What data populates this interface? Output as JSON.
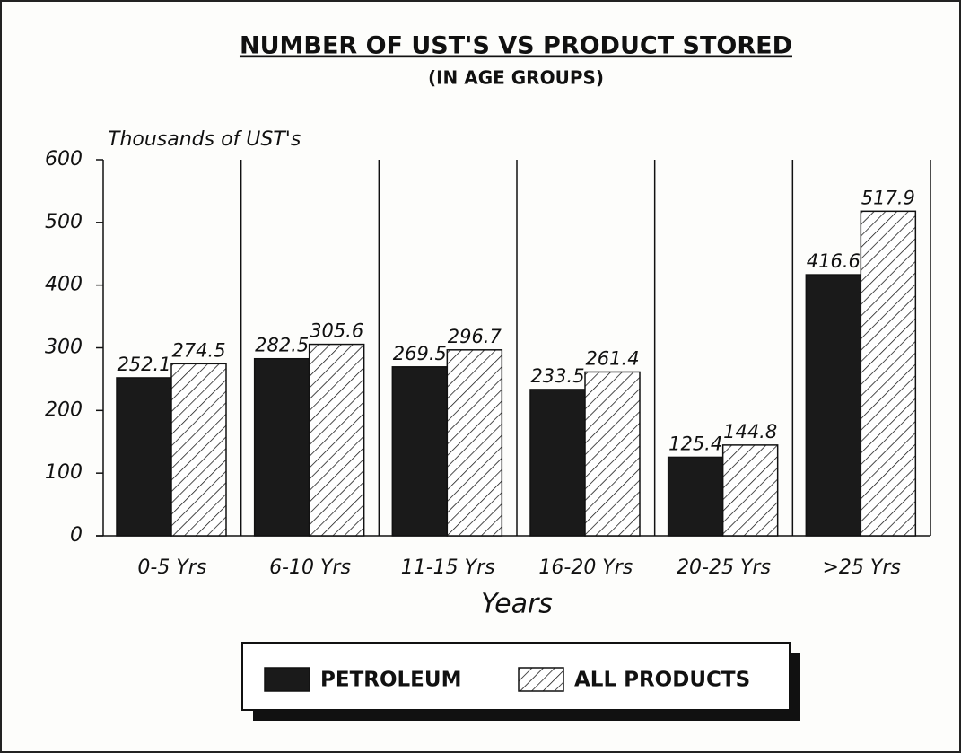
{
  "chart_data": {
    "type": "bar",
    "title": "NUMBER OF UST'S VS PRODUCT STORED",
    "subtitle": "(IN AGE GROUPS)",
    "y_axis_label": "Thousands of UST's",
    "x_axis_label": "Years",
    "categories": [
      "0-5 Yrs",
      "6-10 Yrs",
      "11-15 Yrs",
      "16-20 Yrs",
      "20-25 Yrs",
      ">25 Yrs"
    ],
    "series": [
      {
        "name": "PETROLEUM",
        "color": "#1a1a1a",
        "pattern": "solid",
        "values": [
          252.1,
          282.5,
          269.5,
          233.5,
          125.4,
          416.6
        ]
      },
      {
        "name": "ALL PRODUCTS",
        "color": "#ffffff",
        "pattern": "hatch",
        "values": [
          274.5,
          305.6,
          296.7,
          261.4,
          144.8,
          517.9
        ]
      }
    ],
    "ylim": [
      0,
      600
    ],
    "yticks": [
      0,
      100,
      200,
      300,
      400,
      500,
      600
    ],
    "grid": false
  }
}
